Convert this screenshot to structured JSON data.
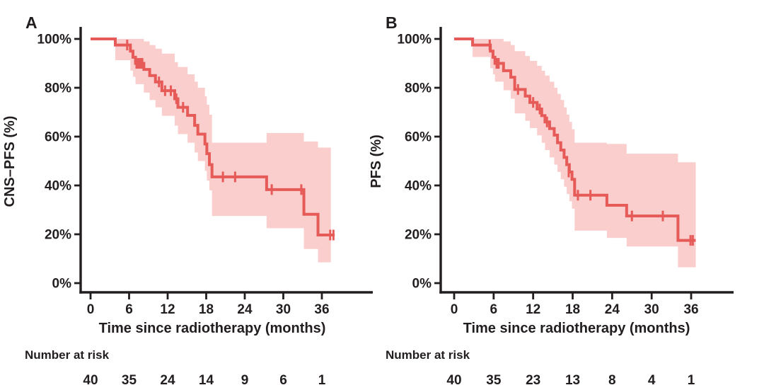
{
  "colors": {
    "line": "#e65a58",
    "band": "#facecd",
    "axis": "#221e1f",
    "text": "#221e1f",
    "background": "#ffffff"
  },
  "chart_data": [
    {
      "type": "line",
      "subtype": "kaplan-meier",
      "title": "A",
      "xlabel": "Time since radiotherapy (months)",
      "ylabel": "CNS–PFS (%)",
      "x_ticks": [
        0,
        6,
        12,
        18,
        24,
        30,
        36
      ],
      "y_ticks": [
        "0%",
        "20%",
        "40%",
        "60%",
        "80%",
        "100%"
      ],
      "xlim": [
        0,
        44
      ],
      "ylim": [
        0,
        100
      ],
      "grid": false,
      "legend": false,
      "survival_steps_pct": [
        [
          0,
          100
        ],
        [
          3.85,
          97.5
        ],
        [
          6.2,
          95
        ],
        [
          6.6,
          92.5
        ],
        [
          7.0,
          90
        ],
        [
          8.3,
          87.5
        ],
        [
          9.2,
          85
        ],
        [
          10.1,
          82.4
        ],
        [
          11.1,
          78.8
        ],
        [
          13.1,
          75.5
        ],
        [
          13.6,
          72
        ],
        [
          15.1,
          68.7
        ],
        [
          16.2,
          64.6
        ],
        [
          16.7,
          61
        ],
        [
          17.8,
          57
        ],
        [
          18.1,
          53
        ],
        [
          18.5,
          48.5
        ],
        [
          18.9,
          43.5
        ],
        [
          27.4,
          38.3
        ],
        [
          33.2,
          28.2
        ],
        [
          35.4,
          19.7
        ]
      ],
      "curve_end_month": 38.0,
      "censor_marks_pct": [
        [
          5.7,
          97.5
        ],
        [
          7.15,
          90
        ],
        [
          7.45,
          90
        ],
        [
          7.75,
          90
        ],
        [
          8.05,
          90
        ],
        [
          10.65,
          82.4
        ],
        [
          11.6,
          78.8
        ],
        [
          12.5,
          78.8
        ],
        [
          13.35,
          75.5
        ],
        [
          14.4,
          72
        ],
        [
          20.6,
          43.5
        ],
        [
          22.5,
          43.5
        ],
        [
          28.2,
          38.3
        ],
        [
          32.8,
          38.3
        ],
        [
          37.3,
          19.7
        ],
        [
          37.8,
          19.7
        ]
      ],
      "ci_band_pct": [
        [
          3.85,
          91.3,
          100
        ],
        [
          6.2,
          87,
          100
        ],
        [
          6.6,
          84.5,
          100
        ],
        [
          7.0,
          81.5,
          100
        ],
        [
          8.3,
          78,
          99
        ],
        [
          9.2,
          75,
          97.5
        ],
        [
          10.1,
          72,
          96
        ],
        [
          11.1,
          68.5,
          94
        ],
        [
          13.1,
          64.5,
          90.5
        ],
        [
          13.6,
          61,
          88.5
        ],
        [
          15.1,
          57.5,
          85.5
        ],
        [
          16.2,
          53.5,
          82.5
        ],
        [
          16.7,
          50,
          80
        ],
        [
          17.8,
          46,
          76.5
        ],
        [
          18.1,
          42,
          73
        ],
        [
          18.5,
          38,
          69
        ],
        [
          18.9,
          27.5,
          57.5
        ],
        [
          27.4,
          22.5,
          61.5
        ],
        [
          33.2,
          14,
          58
        ],
        [
          35.4,
          8.5,
          55.5
        ]
      ],
      "band_end_month": 37.4,
      "number_at_risk": {
        "label": "Number at risk",
        "times": [
          0,
          6,
          12,
          18,
          24,
          30,
          36
        ],
        "values": [
          40,
          35,
          24,
          14,
          9,
          6,
          1
        ]
      }
    },
    {
      "type": "line",
      "subtype": "kaplan-meier",
      "title": "B",
      "xlabel": "Time since radiotherapy (months)",
      "ylabel": "PFS (%)",
      "x_ticks": [
        0,
        6,
        12,
        18,
        24,
        30,
        36
      ],
      "y_ticks": [
        "0%",
        "20%",
        "40%",
        "60%",
        "80%",
        "100%"
      ],
      "xlim": [
        0,
        42.4
      ],
      "ylim": [
        0,
        100
      ],
      "grid": false,
      "legend": false,
      "survival_steps_pct": [
        [
          0,
          100
        ],
        [
          2.8,
          97.5
        ],
        [
          5.5,
          95
        ],
        [
          5.9,
          92.5
        ],
        [
          6.2,
          90
        ],
        [
          7.5,
          87
        ],
        [
          8.6,
          84.3
        ],
        [
          9.2,
          79.3
        ],
        [
          10.8,
          76.6
        ],
        [
          11.5,
          74
        ],
        [
          12.6,
          71.3
        ],
        [
          13.3,
          68.6
        ],
        [
          13.8,
          66
        ],
        [
          14.5,
          63.3
        ],
        [
          15.2,
          60.6
        ],
        [
          15.7,
          57.5
        ],
        [
          16.2,
          54.5
        ],
        [
          16.7,
          51.5
        ],
        [
          17.1,
          48.5
        ],
        [
          17.5,
          45.5
        ],
        [
          17.9,
          42.5
        ],
        [
          18.3,
          36
        ],
        [
          23.2,
          31.9
        ],
        [
          26.2,
          27.5
        ],
        [
          34.0,
          17.5
        ]
      ],
      "curve_end_month": 36.7,
      "censor_marks_pct": [
        [
          5.4,
          97.5
        ],
        [
          6.45,
          90
        ],
        [
          6.75,
          90
        ],
        [
          9.7,
          79.3
        ],
        [
          12.0,
          74
        ],
        [
          13.0,
          71.3
        ],
        [
          14.1,
          66
        ],
        [
          17.4,
          45.5
        ],
        [
          18.8,
          36
        ],
        [
          20.7,
          36
        ],
        [
          27.0,
          27.5
        ],
        [
          31.7,
          27.5
        ],
        [
          35.9,
          17.5
        ],
        [
          36.25,
          17.5
        ]
      ],
      "ci_band_pct": [
        [
          2.8,
          92.6,
          100
        ],
        [
          5.5,
          88,
          100
        ],
        [
          5.9,
          85.5,
          100
        ],
        [
          6.2,
          82.5,
          100
        ],
        [
          7.5,
          79,
          99
        ],
        [
          8.6,
          75.5,
          97.5
        ],
        [
          9.2,
          69.5,
          95
        ],
        [
          10.8,
          66.5,
          93
        ],
        [
          11.5,
          63.5,
          91
        ],
        [
          12.6,
          60.5,
          89
        ],
        [
          13.3,
          57.5,
          87
        ],
        [
          13.8,
          54.5,
          85
        ],
        [
          14.5,
          51.5,
          82.5
        ],
        [
          15.2,
          48.5,
          80
        ],
        [
          15.7,
          45.5,
          77.5
        ],
        [
          16.2,
          42.5,
          75
        ],
        [
          16.7,
          39.5,
          72
        ],
        [
          17.1,
          36.5,
          69
        ],
        [
          17.5,
          33.5,
          66
        ],
        [
          17.9,
          30.5,
          63
        ],
        [
          18.3,
          21.5,
          57.5
        ],
        [
          23.2,
          18.5,
          57
        ],
        [
          26.2,
          15,
          53
        ],
        [
          34.0,
          6.5,
          49.5
        ]
      ],
      "band_end_month": 36.7,
      "number_at_risk": {
        "label": "Number at risk",
        "times": [
          0,
          6,
          12,
          18,
          24,
          30,
          36
        ],
        "values": [
          40,
          35,
          23,
          13,
          8,
          4,
          1
        ]
      }
    }
  ]
}
